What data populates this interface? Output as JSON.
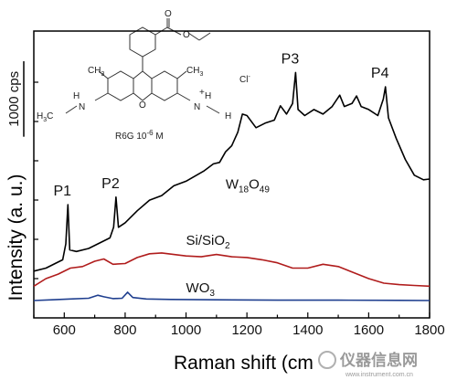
{
  "chart_data": {
    "type": "line",
    "xlabel": "Raman shift (cm",
    "ylabel": "Intensity (a. u.)",
    "xlim": [
      500,
      1800
    ],
    "x_ticks": [
      600,
      800,
      1000,
      1200,
      1400,
      1600,
      1800
    ],
    "y_tick_labels_shown": false,
    "scale_bar_label": "1000 cps",
    "scale_bar_value": 1000,
    "series": [
      {
        "name": "W18O49",
        "color": "#000000",
        "label_text": "W",
        "label_sub1": "18",
        "label_mid": "O",
        "label_sub2": "49",
        "points": [
          [
            500,
            3120
          ],
          [
            540,
            3160
          ],
          [
            570,
            3220
          ],
          [
            595,
            3270
          ],
          [
            605,
            3480
          ],
          [
            612,
            4000
          ],
          [
            618,
            3400
          ],
          [
            640,
            3380
          ],
          [
            680,
            3420
          ],
          [
            720,
            3500
          ],
          [
            750,
            3560
          ],
          [
            762,
            3700
          ],
          [
            770,
            4100
          ],
          [
            778,
            3700
          ],
          [
            800,
            3760
          ],
          [
            840,
            3920
          ],
          [
            880,
            4060
          ],
          [
            920,
            4120
          ],
          [
            960,
            4250
          ],
          [
            1000,
            4310
          ],
          [
            1030,
            4380
          ],
          [
            1060,
            4450
          ],
          [
            1090,
            4540
          ],
          [
            1110,
            4560
          ],
          [
            1130,
            4700
          ],
          [
            1150,
            4780
          ],
          [
            1170,
            4960
          ],
          [
            1185,
            5200
          ],
          [
            1200,
            5180
          ],
          [
            1230,
            5020
          ],
          [
            1260,
            5080
          ],
          [
            1290,
            5120
          ],
          [
            1310,
            5310
          ],
          [
            1330,
            5200
          ],
          [
            1350,
            5340
          ],
          [
            1360,
            5750
          ],
          [
            1368,
            5260
          ],
          [
            1390,
            5180
          ],
          [
            1420,
            5260
          ],
          [
            1450,
            5200
          ],
          [
            1480,
            5300
          ],
          [
            1505,
            5450
          ],
          [
            1520,
            5300
          ],
          [
            1545,
            5340
          ],
          [
            1560,
            5440
          ],
          [
            1575,
            5300
          ],
          [
            1600,
            5260
          ],
          [
            1630,
            5180
          ],
          [
            1648,
            5400
          ],
          [
            1655,
            5560
          ],
          [
            1665,
            5150
          ],
          [
            1690,
            4880
          ],
          [
            1720,
            4600
          ],
          [
            1750,
            4390
          ],
          [
            1780,
            4330
          ],
          [
            1800,
            4340
          ]
        ]
      },
      {
        "name": "Si/SiO2",
        "color": "#b01c1c",
        "label_text": "Si/SiO",
        "label_sub": "2",
        "points": [
          [
            500,
            2920
          ],
          [
            540,
            3020
          ],
          [
            580,
            3080
          ],
          [
            620,
            3160
          ],
          [
            660,
            3180
          ],
          [
            700,
            3250
          ],
          [
            730,
            3280
          ],
          [
            760,
            3210
          ],
          [
            800,
            3220
          ],
          [
            840,
            3300
          ],
          [
            880,
            3350
          ],
          [
            920,
            3360
          ],
          [
            960,
            3340
          ],
          [
            1000,
            3320
          ],
          [
            1050,
            3310
          ],
          [
            1100,
            3340
          ],
          [
            1150,
            3310
          ],
          [
            1200,
            3300
          ],
          [
            1250,
            3270
          ],
          [
            1300,
            3230
          ],
          [
            1350,
            3160
          ],
          [
            1400,
            3160
          ],
          [
            1450,
            3210
          ],
          [
            1500,
            3180
          ],
          [
            1550,
            3100
          ],
          [
            1600,
            3020
          ],
          [
            1650,
            2960
          ],
          [
            1700,
            2940
          ],
          [
            1750,
            2930
          ],
          [
            1800,
            2920
          ]
        ]
      },
      {
        "name": "WO3",
        "color": "#1f3f8f",
        "label_text": "WO",
        "label_sub": "3",
        "points": [
          [
            500,
            2730
          ],
          [
            560,
            2740
          ],
          [
            620,
            2750
          ],
          [
            680,
            2760
          ],
          [
            710,
            2800
          ],
          [
            730,
            2780
          ],
          [
            760,
            2755
          ],
          [
            790,
            2760
          ],
          [
            808,
            2840
          ],
          [
            825,
            2770
          ],
          [
            870,
            2750
          ],
          [
            950,
            2745
          ],
          [
            1100,
            2740
          ],
          [
            1300,
            2735
          ],
          [
            1500,
            2735
          ],
          [
            1700,
            2732
          ],
          [
            1800,
            2730
          ]
        ]
      }
    ],
    "annotations": [
      {
        "text": "P1",
        "x": 612,
        "y": 4000
      },
      {
        "text": "P2",
        "x": 770,
        "y": 4100
      },
      {
        "text": "P3",
        "x": 1360,
        "y": 5750
      },
      {
        "text": "P4",
        "x": 1655,
        "y": 5560
      }
    ],
    "inset": {
      "caption": "R6G 10",
      "caption_sup": "-6",
      "caption_unit": " M",
      "anion": "Cl",
      "anion_sup": "-",
      "atom_labels": [
        "O",
        "O",
        "O",
        "H",
        "H",
        "N",
        "N",
        "CH",
        "CH",
        "H",
        "C",
        "H"
      ],
      "atom_subs": [
        "3",
        "3",
        "3"
      ],
      "cation_charge": "+"
    }
  },
  "watermark": {
    "text": "仪器信息网",
    "subtext": "www.instrument.com.cn"
  }
}
